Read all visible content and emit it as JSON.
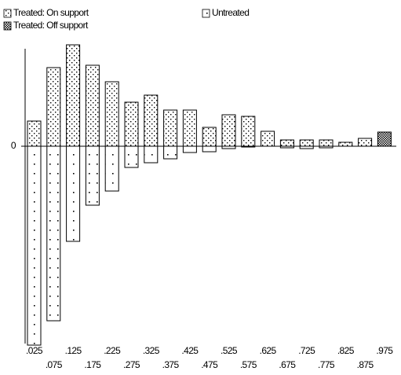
{
  "chart_data": {
    "type": "bar",
    "categories": [
      ".025",
      ".075",
      ".125",
      ".175",
      ".225",
      ".275",
      ".325",
      ".375",
      ".425",
      ".475",
      ".525",
      ".575",
      ".625",
      ".675",
      ".725",
      ".775",
      ".825",
      ".875",
      ".975"
    ],
    "series": [
      {
        "name": "Treated: On support",
        "color": "#000000",
        "pattern": "dots",
        "values": [
          32,
          100,
          129,
          103,
          82,
          56,
          65,
          46,
          46,
          24,
          40,
          38,
          19,
          8,
          8,
          8,
          5,
          10,
          null
        ]
      },
      {
        "name": "Treated: Off support",
        "color": "#000000",
        "pattern": "dense",
        "values": [
          null,
          null,
          null,
          null,
          null,
          null,
          null,
          null,
          null,
          null,
          null,
          null,
          null,
          null,
          null,
          null,
          null,
          null,
          18
        ]
      },
      {
        "name": "Untreated",
        "color": "#000000",
        "pattern": "sparse",
        "values": [
          -253,
          -222,
          -121,
          -75,
          -57,
          -27,
          -21,
          -16,
          -8,
          -7,
          -3,
          -1,
          0,
          -2,
          -3,
          -2,
          0,
          0,
          0
        ]
      }
    ],
    "ylim": [
      -255,
      130
    ],
    "yticks": [
      0
    ]
  }
}
